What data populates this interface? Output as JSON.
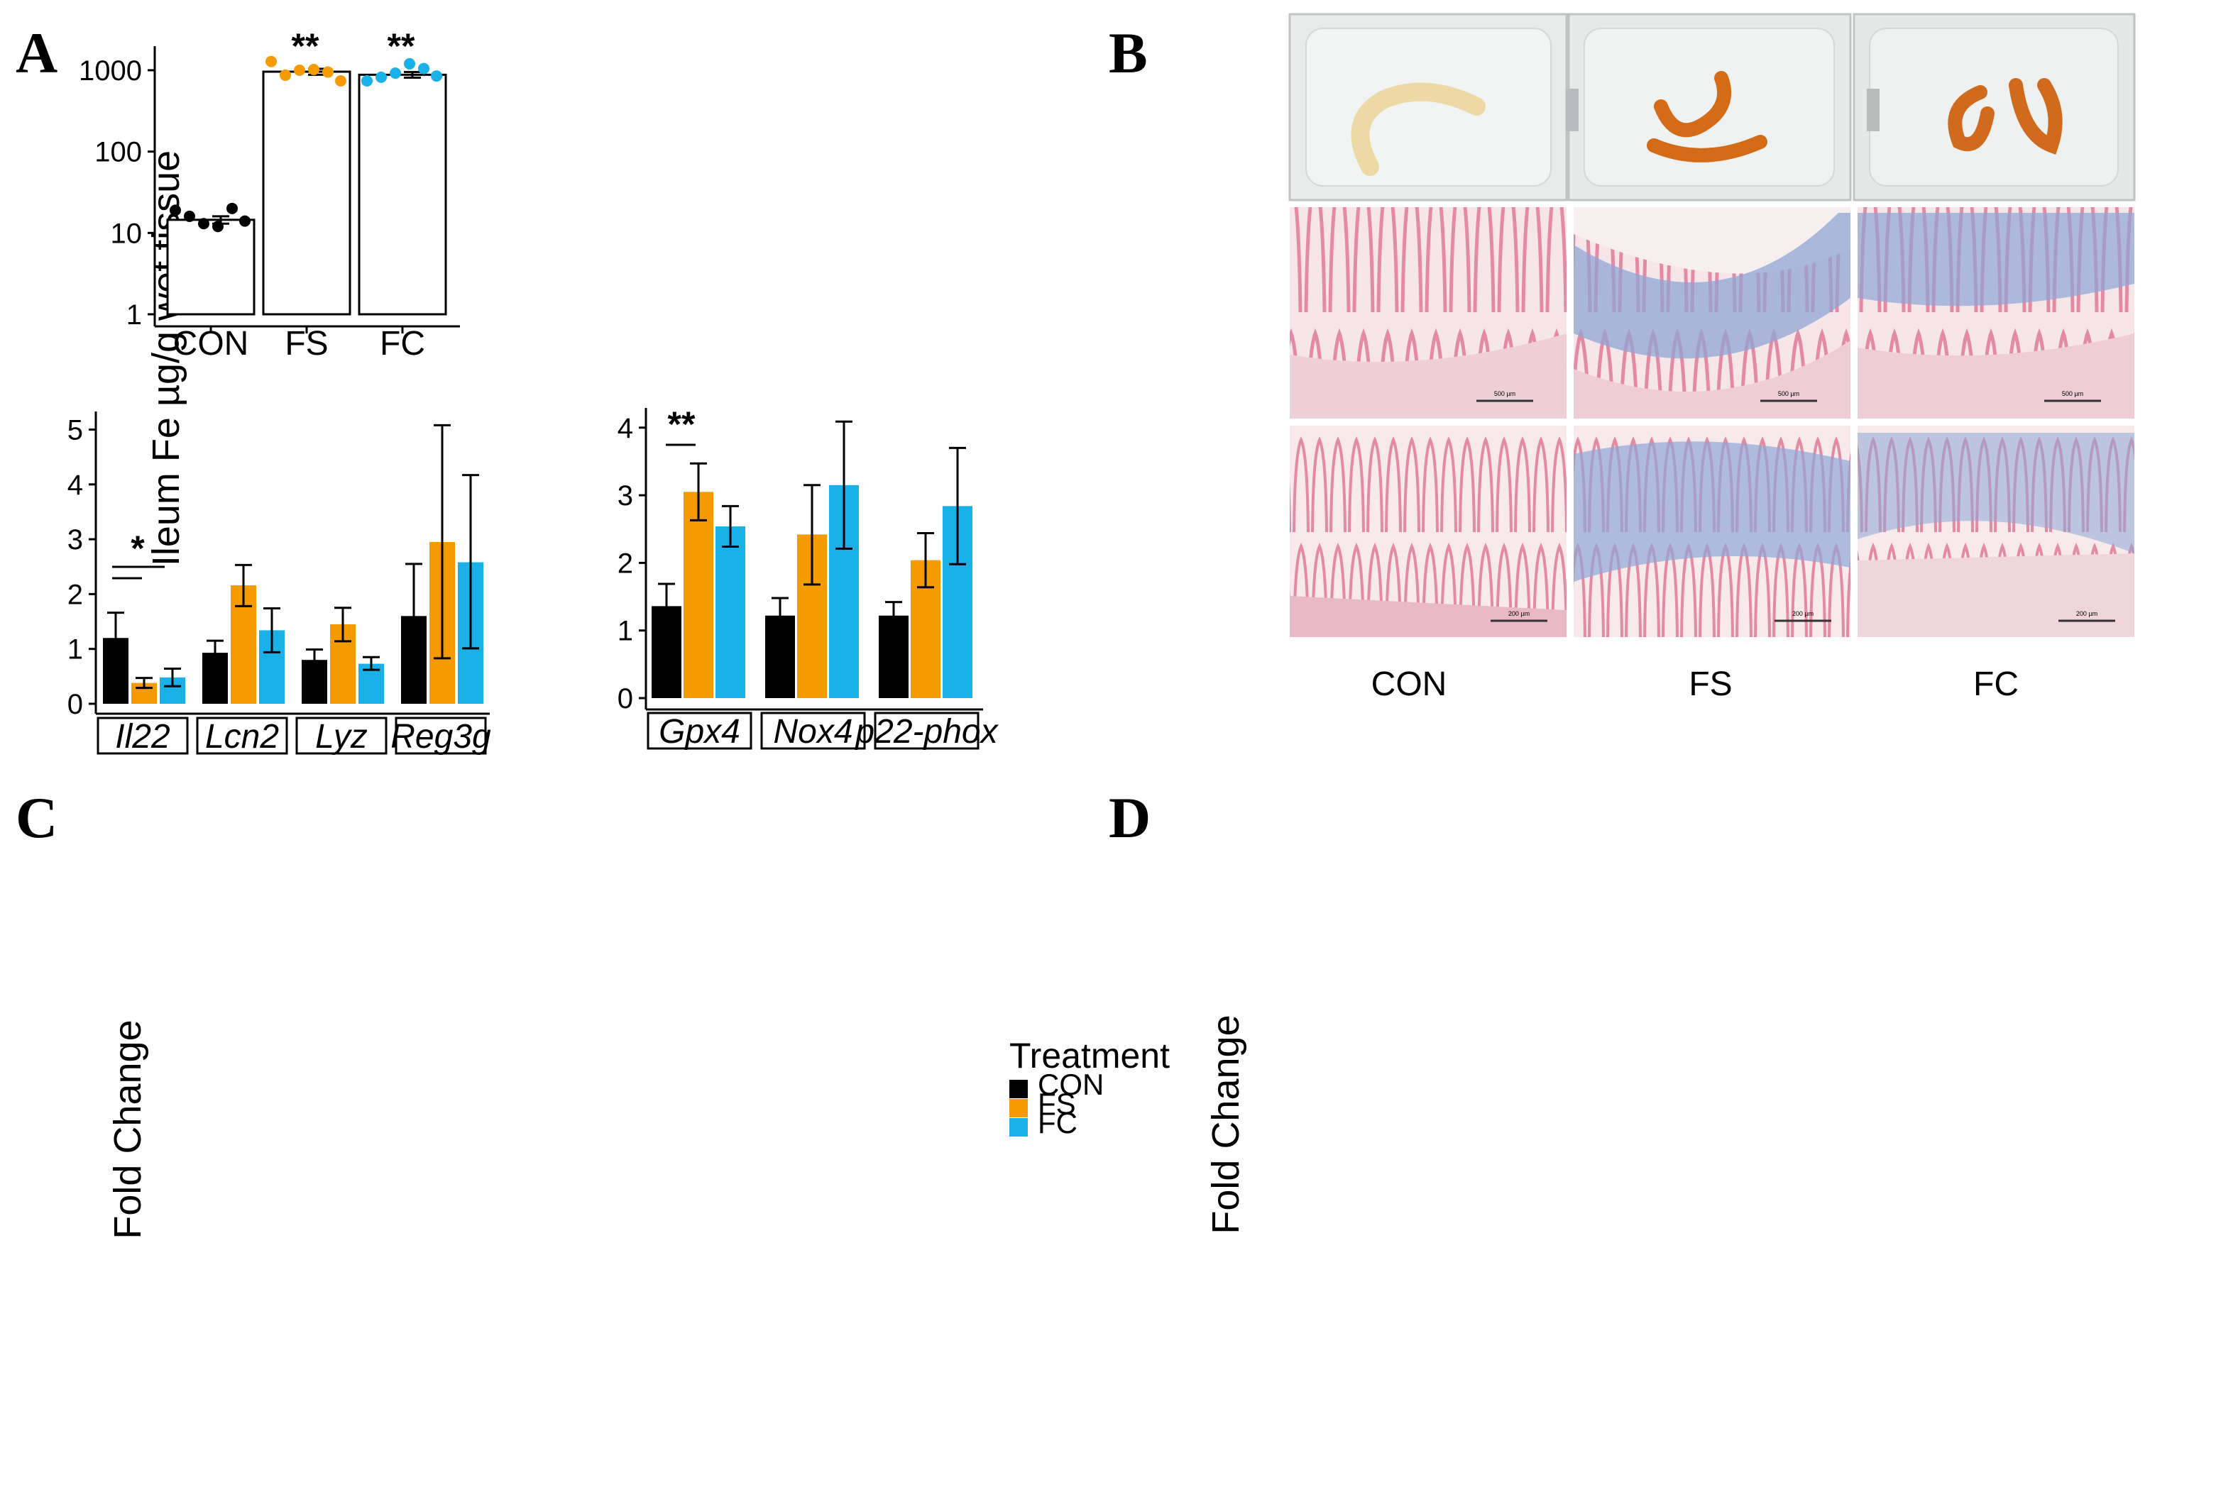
{
  "colors": {
    "CON": "#000000",
    "FS": "#F59B00",
    "FC": "#1AB0E8"
  },
  "panels": {
    "A": "A",
    "B": "B",
    "C": "C",
    "D": "D"
  },
  "panel_b": {
    "labels": [
      "CON",
      "FS",
      "FC"
    ],
    "scale_bars_row2": [
      "500 µm",
      "500 µm",
      "500 µm"
    ],
    "scale_bars_row3": [
      "200 µm",
      "200 µm",
      "200 µm"
    ]
  },
  "legend": {
    "title": "Treatment",
    "items": [
      "CON",
      "FS",
      "FC"
    ]
  },
  "chart_data": [
    {
      "id": "A",
      "type": "bar",
      "yscale": "log",
      "ylabel": "Ileum Fe µg/g wet tissue",
      "ylim": [
        1,
        2000
      ],
      "yticks": [
        1,
        10,
        100,
        1000
      ],
      "ytick_labels": [
        "1",
        "10",
        "100",
        "1000"
      ],
      "categories": [
        "CON",
        "FS",
        "FC"
      ],
      "values": [
        14.5,
        960,
        880
      ],
      "errors": [
        1.5,
        80,
        70
      ],
      "point_colors": [
        "CON",
        "FS",
        "FC"
      ],
      "points": [
        [
          19,
          16,
          13,
          12,
          20,
          14
        ],
        [
          1280,
          870,
          1000,
          1020,
          950,
          740
        ],
        [
          740,
          820,
          920,
          1200,
          1050,
          850
        ]
      ],
      "significance": [
        "",
        "**",
        "**"
      ]
    },
    {
      "id": "C",
      "type": "bar",
      "ylabel": "Fold Change",
      "ylim": [
        -0.15,
        5.4
      ],
      "yticks": [
        0,
        1,
        2,
        3,
        4,
        5
      ],
      "groups": [
        "Il22",
        "Lcn2",
        "Lyz",
        "Reg3g"
      ],
      "series": [
        {
          "name": "CON",
          "values": [
            1.2,
            0.93,
            0.8,
            1.6
          ],
          "err_low": [
            0.72,
            0.7,
            0.6,
            0.67
          ],
          "err_high": [
            1.66,
            1.15,
            0.99,
            2.55
          ]
        },
        {
          "name": "FS",
          "values": [
            0.38,
            2.16,
            1.45,
            2.95
          ],
          "err_low": [
            0.29,
            1.78,
            1.14,
            0.83
          ],
          "err_high": [
            0.47,
            2.53,
            1.75,
            5.08
          ]
        },
        {
          "name": "FC",
          "values": [
            0.48,
            1.34,
            0.73,
            2.58
          ],
          "err_low": [
            0.32,
            0.94,
            0.62,
            1.01
          ],
          "err_high": [
            0.64,
            1.74,
            0.85,
            4.17
          ]
        }
      ],
      "significance_label": "*"
    },
    {
      "id": "D",
      "type": "bar",
      "ylabel": "Fold Change",
      "ylim": [
        -0.15,
        4.3
      ],
      "yticks": [
        0,
        1,
        2,
        3,
        4
      ],
      "groups": [
        "Gpx4",
        "Nox4",
        "p22-phox"
      ],
      "series": [
        {
          "name": "CON",
          "values": [
            1.36,
            1.22,
            1.22
          ],
          "err_low": [
            1.04,
            0.97,
            1.02
          ],
          "err_high": [
            1.69,
            1.48,
            1.42
          ]
        },
        {
          "name": "FS",
          "values": [
            3.05,
            2.42,
            2.04
          ],
          "err_low": [
            2.63,
            1.68,
            1.64
          ],
          "err_high": [
            3.47,
            3.15,
            2.44
          ]
        },
        {
          "name": "FC",
          "values": [
            2.54,
            3.15,
            2.84
          ],
          "err_low": [
            2.24,
            2.21,
            1.98
          ],
          "err_high": [
            2.84,
            4.09,
            3.7
          ]
        }
      ],
      "significance_label": "**"
    }
  ]
}
